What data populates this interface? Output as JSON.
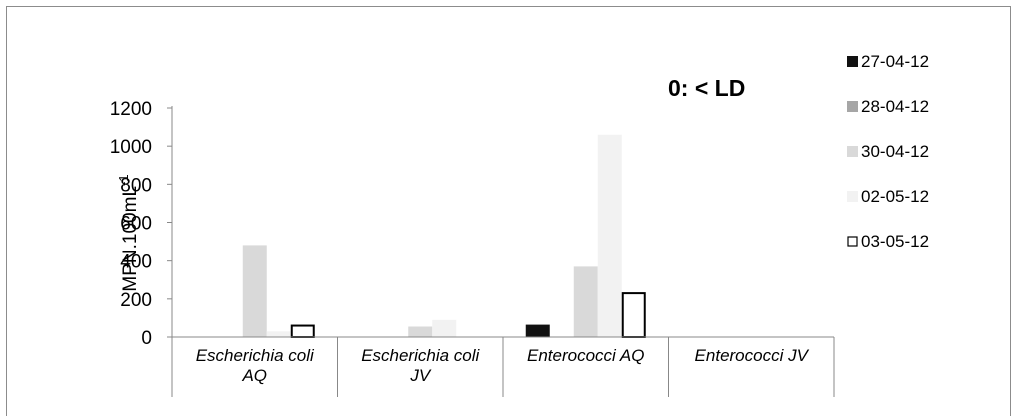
{
  "chart_data": {
    "type": "bar",
    "categories": [
      [
        "Escherichia coli",
        "AQ"
      ],
      [
        "Escherichia coli",
        "JV"
      ],
      [
        "Enterococci AQ"
      ],
      [
        "Enterococci JV"
      ]
    ],
    "series": [
      {
        "name": "27-04-12",
        "values": [
          0,
          0,
          65,
          0
        ],
        "fill": "#111111",
        "stroke": "#111111"
      },
      {
        "name": "28-04-12",
        "values": [
          0,
          0,
          0,
          0
        ],
        "fill": "#a6a6a6",
        "stroke": "#a6a6a6"
      },
      {
        "name": "30-04-12",
        "values": [
          480,
          55,
          370,
          0
        ],
        "fill": "#d9d9d9",
        "stroke": "#d9d9d9"
      },
      {
        "name": "02-05-12",
        "values": [
          30,
          90,
          1060,
          0
        ],
        "fill": "#f2f2f2",
        "stroke": "#f2f2f2"
      },
      {
        "name": "03-05-12",
        "values": [
          60,
          0,
          230,
          0
        ],
        "fill": "#ffffff",
        "stroke": "#000000"
      }
    ],
    "yticks": [
      0,
      200,
      400,
      600,
      800,
      1000,
      1200
    ],
    "ylim": [
      0,
      1200
    ],
    "ylabel": "MPN.100mL",
    "ylabel_sup": "-1",
    "annotation": "0: < LD",
    "legend_position": "right",
    "grid": false
  }
}
